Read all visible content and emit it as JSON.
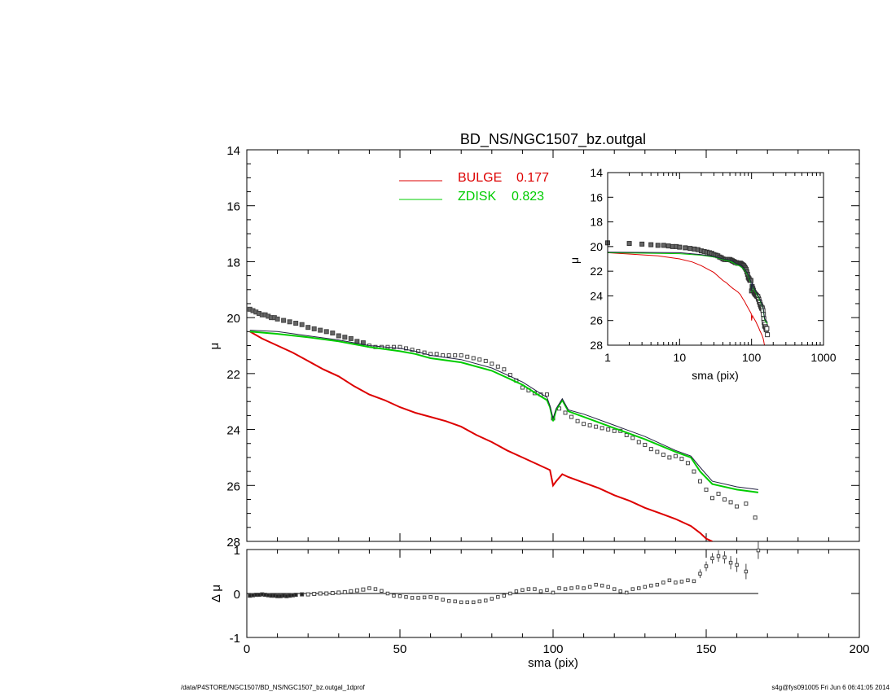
{
  "chart_data": [
    {
      "type": "line",
      "title": "BD_NS/NGC1507_bz.outgal",
      "xlabel": "sma (pix)",
      "ylabel": "μ",
      "xlim": [
        0,
        200
      ],
      "ylim": [
        28,
        14
      ],
      "x_ticks": [
        "0",
        "50",
        "100",
        "150",
        "200"
      ],
      "y_ticks": [
        "14",
        "16",
        "18",
        "20",
        "22",
        "24",
        "26",
        "28"
      ],
      "legend": [
        {
          "label": "BULGE",
          "value": "0.177",
          "color": "#dd0000"
        },
        {
          "label": "ZDISK",
          "value": "0.823",
          "color": "#00cc00"
        }
      ],
      "legend_position": "top-left",
      "series": [
        {
          "name": "BULGE",
          "color": "#dd0000",
          "x": [
            1,
            5,
            10,
            15,
            20,
            25,
            30,
            35,
            40,
            45,
            50,
            55,
            60,
            65,
            70,
            75,
            80,
            85,
            90,
            95,
            99,
            100,
            101,
            103,
            105,
            110,
            115,
            120,
            125,
            130,
            135,
            140,
            145,
            148,
            150,
            152
          ],
          "y": [
            20.5,
            20.75,
            21.0,
            21.25,
            21.55,
            21.85,
            22.1,
            22.45,
            22.75,
            22.95,
            23.2,
            23.4,
            23.55,
            23.7,
            23.9,
            24.2,
            24.45,
            24.75,
            25.0,
            25.25,
            25.45,
            26.0,
            25.85,
            25.6,
            25.7,
            25.9,
            26.1,
            26.35,
            26.55,
            26.8,
            27.0,
            27.2,
            27.45,
            27.7,
            27.9,
            28.0
          ]
        },
        {
          "name": "ZDISK",
          "color": "#00cc00",
          "x": [
            1,
            10,
            20,
            30,
            40,
            50,
            55,
            60,
            70,
            80,
            90,
            95,
            98,
            99,
            100,
            101,
            103,
            105,
            110,
            120,
            130,
            140,
            145,
            148,
            152,
            160,
            167
          ],
          "y": [
            20.5,
            20.58,
            20.7,
            20.85,
            21.05,
            21.2,
            21.3,
            21.45,
            21.6,
            21.9,
            22.4,
            22.75,
            22.95,
            23.2,
            23.7,
            23.3,
            22.95,
            23.35,
            23.55,
            23.95,
            24.35,
            24.8,
            25.0,
            25.5,
            25.95,
            26.15,
            26.25
          ]
        },
        {
          "name": "",
          "color": "#202040",
          "x": [
            1,
            10,
            20,
            30,
            40,
            50,
            55,
            60,
            70,
            80,
            90,
            95,
            98,
            99,
            100,
            101,
            103,
            105,
            110,
            120,
            130,
            140,
            145,
            148,
            152,
            160,
            167
          ],
          "y": [
            20.45,
            20.5,
            20.65,
            20.8,
            21.0,
            21.1,
            21.2,
            21.35,
            21.5,
            21.8,
            22.3,
            22.65,
            22.85,
            23.15,
            23.6,
            23.25,
            22.9,
            23.3,
            23.45,
            23.85,
            24.25,
            24.75,
            24.95,
            25.35,
            25.85,
            26.05,
            26.15
          ]
        }
      ],
      "data_points": {
        "x": [
          1,
          2,
          3,
          4,
          5,
          6,
          7,
          8,
          9,
          10,
          12,
          14,
          16,
          18,
          20,
          22,
          24,
          26,
          28,
          30,
          32,
          34,
          36,
          38,
          40,
          42,
          44,
          46,
          48,
          50,
          52,
          54,
          56,
          58,
          60,
          62,
          64,
          66,
          68,
          70,
          72,
          74,
          76,
          78,
          80,
          82,
          84,
          86,
          88,
          90,
          92,
          94,
          96,
          98,
          100,
          102,
          104,
          106,
          108,
          110,
          112,
          114,
          116,
          118,
          120,
          122,
          124,
          126,
          128,
          130,
          132,
          134,
          136,
          138,
          140,
          142,
          144,
          146,
          148,
          150,
          152,
          154,
          156,
          158,
          160,
          163,
          166
        ],
        "y": [
          19.7,
          19.75,
          19.8,
          19.85,
          19.9,
          19.9,
          19.95,
          20.0,
          20.0,
          20.05,
          20.1,
          20.15,
          20.2,
          20.25,
          20.35,
          20.4,
          20.45,
          20.5,
          20.55,
          20.65,
          20.7,
          20.75,
          20.85,
          20.9,
          21.0,
          21.05,
          21.05,
          21.05,
          21.05,
          21.05,
          21.1,
          21.15,
          21.2,
          21.25,
          21.3,
          21.3,
          21.35,
          21.35,
          21.35,
          21.35,
          21.4,
          21.45,
          21.5,
          21.55,
          21.65,
          21.75,
          21.85,
          22.05,
          22.25,
          22.5,
          22.6,
          22.7,
          22.75,
          22.75,
          23.6,
          23.25,
          23.4,
          23.55,
          23.7,
          23.8,
          23.85,
          23.9,
          23.95,
          24.0,
          24.05,
          24.05,
          24.2,
          24.3,
          24.45,
          24.55,
          24.7,
          24.8,
          24.9,
          25.0,
          24.95,
          25.05,
          25.2,
          25.5,
          25.85,
          26.15,
          26.45,
          26.3,
          26.5,
          26.6,
          26.75,
          26.65,
          27.15
        ]
      }
    },
    {
      "type": "scatter",
      "title": "",
      "xlabel": "sma (pix)",
      "ylabel": "Δ μ",
      "xlim": [
        0,
        200
      ],
      "ylim": [
        -1,
        1
      ],
      "x_ticks": [
        "0",
        "50",
        "100",
        "150",
        "200"
      ],
      "y_ticks": [
        "1",
        "0",
        "-1"
      ],
      "zero_line": [
        0,
        167
      ],
      "residuals": {
        "x": [
          1,
          2,
          3,
          4,
          5,
          6,
          7,
          8,
          9,
          10,
          11,
          12,
          13,
          14,
          15,
          16,
          18,
          20,
          22,
          24,
          26,
          28,
          30,
          32,
          34,
          36,
          38,
          40,
          42,
          44,
          46,
          48,
          50,
          52,
          54,
          56,
          58,
          60,
          62,
          64,
          66,
          68,
          70,
          72,
          74,
          76,
          78,
          80,
          82,
          84,
          86,
          88,
          90,
          92,
          94,
          96,
          98,
          100,
          102,
          104,
          106,
          108,
          110,
          112,
          114,
          116,
          118,
          120,
          122,
          124,
          126,
          128,
          130,
          132,
          134,
          136,
          138,
          140,
          142,
          144,
          146,
          148,
          150,
          152,
          154,
          156,
          158,
          160,
          163,
          167
        ],
        "y": [
          -0.05,
          -0.04,
          -0.03,
          -0.03,
          -0.02,
          -0.03,
          -0.04,
          -0.05,
          -0.05,
          -0.06,
          -0.06,
          -0.05,
          -0.06,
          -0.05,
          -0.04,
          -0.03,
          -0.02,
          -0.02,
          -0.01,
          0.0,
          0.0,
          0.01,
          0.02,
          0.03,
          0.05,
          0.07,
          0.09,
          0.12,
          0.1,
          0.06,
          0.0,
          -0.05,
          -0.06,
          -0.08,
          -0.1,
          -0.1,
          -0.09,
          -0.08,
          -0.1,
          -0.14,
          -0.17,
          -0.18,
          -0.2,
          -0.2,
          -0.2,
          -0.18,
          -0.16,
          -0.12,
          -0.08,
          -0.05,
          0.0,
          0.05,
          0.08,
          0.1,
          0.1,
          0.05,
          0.08,
          0.02,
          0.12,
          0.1,
          0.12,
          0.14,
          0.12,
          0.15,
          0.2,
          0.18,
          0.15,
          0.1,
          0.05,
          0.02,
          0.1,
          0.12,
          0.15,
          0.18,
          0.2,
          0.25,
          0.3,
          0.25,
          0.27,
          0.3,
          0.28,
          0.45,
          0.62,
          0.8,
          0.85,
          0.82,
          0.7,
          0.65,
          0.5,
          0.98
        ]
      }
    },
    {
      "type": "line",
      "title": "",
      "xlabel": "sma (pix)",
      "ylabel": "μ",
      "x_scale": "log",
      "xlim": [
        1,
        1000
      ],
      "ylim": [
        28,
        14
      ],
      "x_ticks": [
        "1",
        "10",
        "100",
        "1000"
      ],
      "y_ticks": [
        "14",
        "16",
        "18",
        "20",
        "22",
        "24",
        "26",
        "28"
      ],
      "legend_position": "inset top-right"
    }
  ],
  "footer": {
    "path": "/data/P4STORE/NGC1507/BD_NS/NGC1507_bz.outgal_1dprof",
    "stamp": "s4g@fys091005  Fri Jun  6 06:41:05 2014"
  }
}
